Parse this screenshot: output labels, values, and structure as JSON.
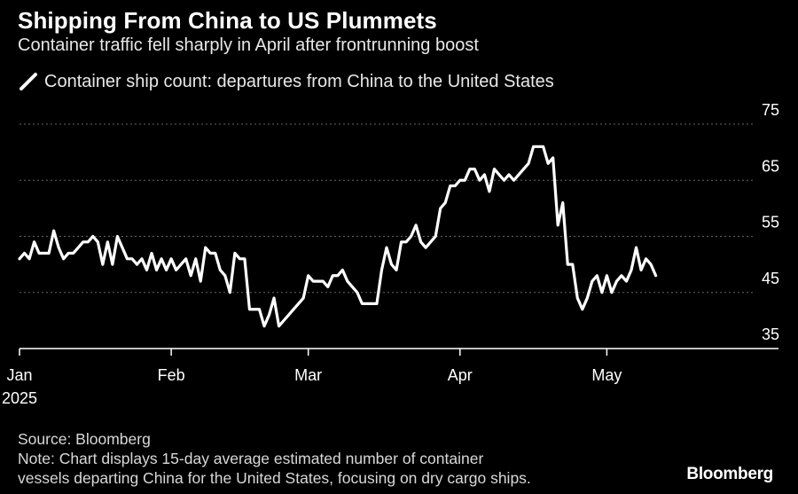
{
  "header": {
    "title": "Shipping From China to US Plummets",
    "subtitle": "Container traffic fell sharply in April after frontrunning boost"
  },
  "chart_data": {
    "type": "line",
    "series": [
      {
        "name": "Container ship count: departures from China to the United States",
        "color": "#ffffff",
        "points": [
          [
            "2025-01-01",
            51
          ],
          [
            "2025-01-02",
            52
          ],
          [
            "2025-01-03",
            51
          ],
          [
            "2025-01-04",
            54
          ],
          [
            "2025-01-05",
            52
          ],
          [
            "2025-01-06",
            52
          ],
          [
            "2025-01-07",
            52
          ],
          [
            "2025-01-08",
            56
          ],
          [
            "2025-01-09",
            53
          ],
          [
            "2025-01-10",
            51
          ],
          [
            "2025-01-11",
            52
          ],
          [
            "2025-01-12",
            52
          ],
          [
            "2025-01-13",
            53
          ],
          [
            "2025-01-14",
            54
          ],
          [
            "2025-01-15",
            54
          ],
          [
            "2025-01-16",
            55
          ],
          [
            "2025-01-17",
            54
          ],
          [
            "2025-01-18",
            50
          ],
          [
            "2025-01-19",
            54
          ],
          [
            "2025-01-20",
            50
          ],
          [
            "2025-01-21",
            55
          ],
          [
            "2025-01-22",
            53
          ],
          [
            "2025-01-23",
            51
          ],
          [
            "2025-01-24",
            51
          ],
          [
            "2025-01-25",
            50
          ],
          [
            "2025-01-26",
            51
          ],
          [
            "2025-01-27",
            49
          ],
          [
            "2025-01-28",
            52
          ],
          [
            "2025-01-29",
            49
          ],
          [
            "2025-01-30",
            51
          ],
          [
            "2025-01-31",
            49
          ],
          [
            "2025-02-01",
            51
          ],
          [
            "2025-02-02",
            49
          ],
          [
            "2025-02-03",
            50
          ],
          [
            "2025-02-04",
            51
          ],
          [
            "2025-02-05",
            48
          ],
          [
            "2025-02-06",
            51
          ],
          [
            "2025-02-07",
            47
          ],
          [
            "2025-02-08",
            53
          ],
          [
            "2025-02-09",
            52
          ],
          [
            "2025-02-10",
            52
          ],
          [
            "2025-02-11",
            49
          ],
          [
            "2025-02-12",
            48
          ],
          [
            "2025-02-13",
            45
          ],
          [
            "2025-02-14",
            52
          ],
          [
            "2025-02-15",
            51
          ],
          [
            "2025-02-16",
            51
          ],
          [
            "2025-02-17",
            42
          ],
          [
            "2025-02-18",
            42
          ],
          [
            "2025-02-19",
            42
          ],
          [
            "2025-02-20",
            39
          ],
          [
            "2025-02-21",
            41
          ],
          [
            "2025-02-22",
            44
          ],
          [
            "2025-02-23",
            39
          ],
          [
            "2025-02-24",
            40
          ],
          [
            "2025-02-25",
            41
          ],
          [
            "2025-02-26",
            42
          ],
          [
            "2025-02-27",
            43
          ],
          [
            "2025-02-28",
            44
          ],
          [
            "2025-03-01",
            48
          ],
          [
            "2025-03-02",
            47
          ],
          [
            "2025-03-03",
            47
          ],
          [
            "2025-03-04",
            47
          ],
          [
            "2025-03-05",
            46
          ],
          [
            "2025-03-06",
            48
          ],
          [
            "2025-03-07",
            48
          ],
          [
            "2025-03-08",
            49
          ],
          [
            "2025-03-09",
            47
          ],
          [
            "2025-03-10",
            46
          ],
          [
            "2025-03-11",
            45
          ],
          [
            "2025-03-12",
            43
          ],
          [
            "2025-03-13",
            43
          ],
          [
            "2025-03-14",
            43
          ],
          [
            "2025-03-15",
            43
          ],
          [
            "2025-03-16",
            49
          ],
          [
            "2025-03-17",
            53
          ],
          [
            "2025-03-18",
            50
          ],
          [
            "2025-03-19",
            49
          ],
          [
            "2025-03-20",
            54
          ],
          [
            "2025-03-21",
            54
          ],
          [
            "2025-03-22",
            55
          ],
          [
            "2025-03-23",
            57
          ],
          [
            "2025-03-24",
            54
          ],
          [
            "2025-03-25",
            53
          ],
          [
            "2025-03-26",
            54
          ],
          [
            "2025-03-27",
            55
          ],
          [
            "2025-03-28",
            60
          ],
          [
            "2025-03-29",
            61
          ],
          [
            "2025-03-30",
            64
          ],
          [
            "2025-03-31",
            64
          ],
          [
            "2025-04-01",
            65
          ],
          [
            "2025-04-02",
            65
          ],
          [
            "2025-04-03",
            67
          ],
          [
            "2025-04-04",
            67
          ],
          [
            "2025-04-05",
            65
          ],
          [
            "2025-04-06",
            66
          ],
          [
            "2025-04-07",
            63
          ],
          [
            "2025-04-08",
            67
          ],
          [
            "2025-04-09",
            66
          ],
          [
            "2025-04-10",
            65
          ],
          [
            "2025-04-11",
            66
          ],
          [
            "2025-04-12",
            65
          ],
          [
            "2025-04-13",
            66
          ],
          [
            "2025-04-14",
            67
          ],
          [
            "2025-04-15",
            68
          ],
          [
            "2025-04-16",
            71
          ],
          [
            "2025-04-17",
            71
          ],
          [
            "2025-04-18",
            71
          ],
          [
            "2025-04-19",
            68
          ],
          [
            "2025-04-20",
            69
          ],
          [
            "2025-04-21",
            57
          ],
          [
            "2025-04-22",
            61
          ],
          [
            "2025-04-23",
            50
          ],
          [
            "2025-04-24",
            50
          ],
          [
            "2025-04-25",
            44
          ],
          [
            "2025-04-26",
            42
          ],
          [
            "2025-04-27",
            44
          ],
          [
            "2025-04-28",
            47
          ],
          [
            "2025-04-29",
            48
          ],
          [
            "2025-04-30",
            45
          ],
          [
            "2025-05-01",
            48
          ],
          [
            "2025-05-02",
            45
          ],
          [
            "2025-05-03",
            47
          ],
          [
            "2025-05-04",
            48
          ],
          [
            "2025-05-05",
            47
          ],
          [
            "2025-05-06",
            49
          ],
          [
            "2025-05-07",
            53
          ],
          [
            "2025-05-08",
            49
          ],
          [
            "2025-05-09",
            51
          ],
          [
            "2025-05-10",
            50
          ],
          [
            "2025-05-11",
            48
          ]
        ]
      }
    ],
    "x_ticks": [
      {
        "date": "2025-01-01",
        "label": "Jan"
      },
      {
        "date": "2025-02-01",
        "label": "Feb"
      },
      {
        "date": "2025-03-01",
        "label": "Mar"
      },
      {
        "date": "2025-04-01",
        "label": "Apr"
      },
      {
        "date": "2025-05-01",
        "label": "May"
      }
    ],
    "x_year_label": "2025",
    "xlim": [
      "2025-01-01",
      "2025-05-31"
    ],
    "ylim": [
      35,
      75
    ],
    "y_ticks": [
      75,
      65,
      55,
      45,
      35
    ],
    "y_axis_side": "right",
    "grid": "horizontal-dotted",
    "legend_position": "top-left"
  },
  "footer": {
    "source": "Source: Bloomberg",
    "note_lines": [
      "Note: Chart displays 15-day average estimated number of container",
      "vessels departing China for the United States, focusing on dry cargo ships."
    ],
    "brand": "Bloomberg"
  },
  "colors": {
    "background": "#000000",
    "line": "#ffffff",
    "grid": "#666666",
    "axis": "#ffffff",
    "text": "#ffffff"
  }
}
